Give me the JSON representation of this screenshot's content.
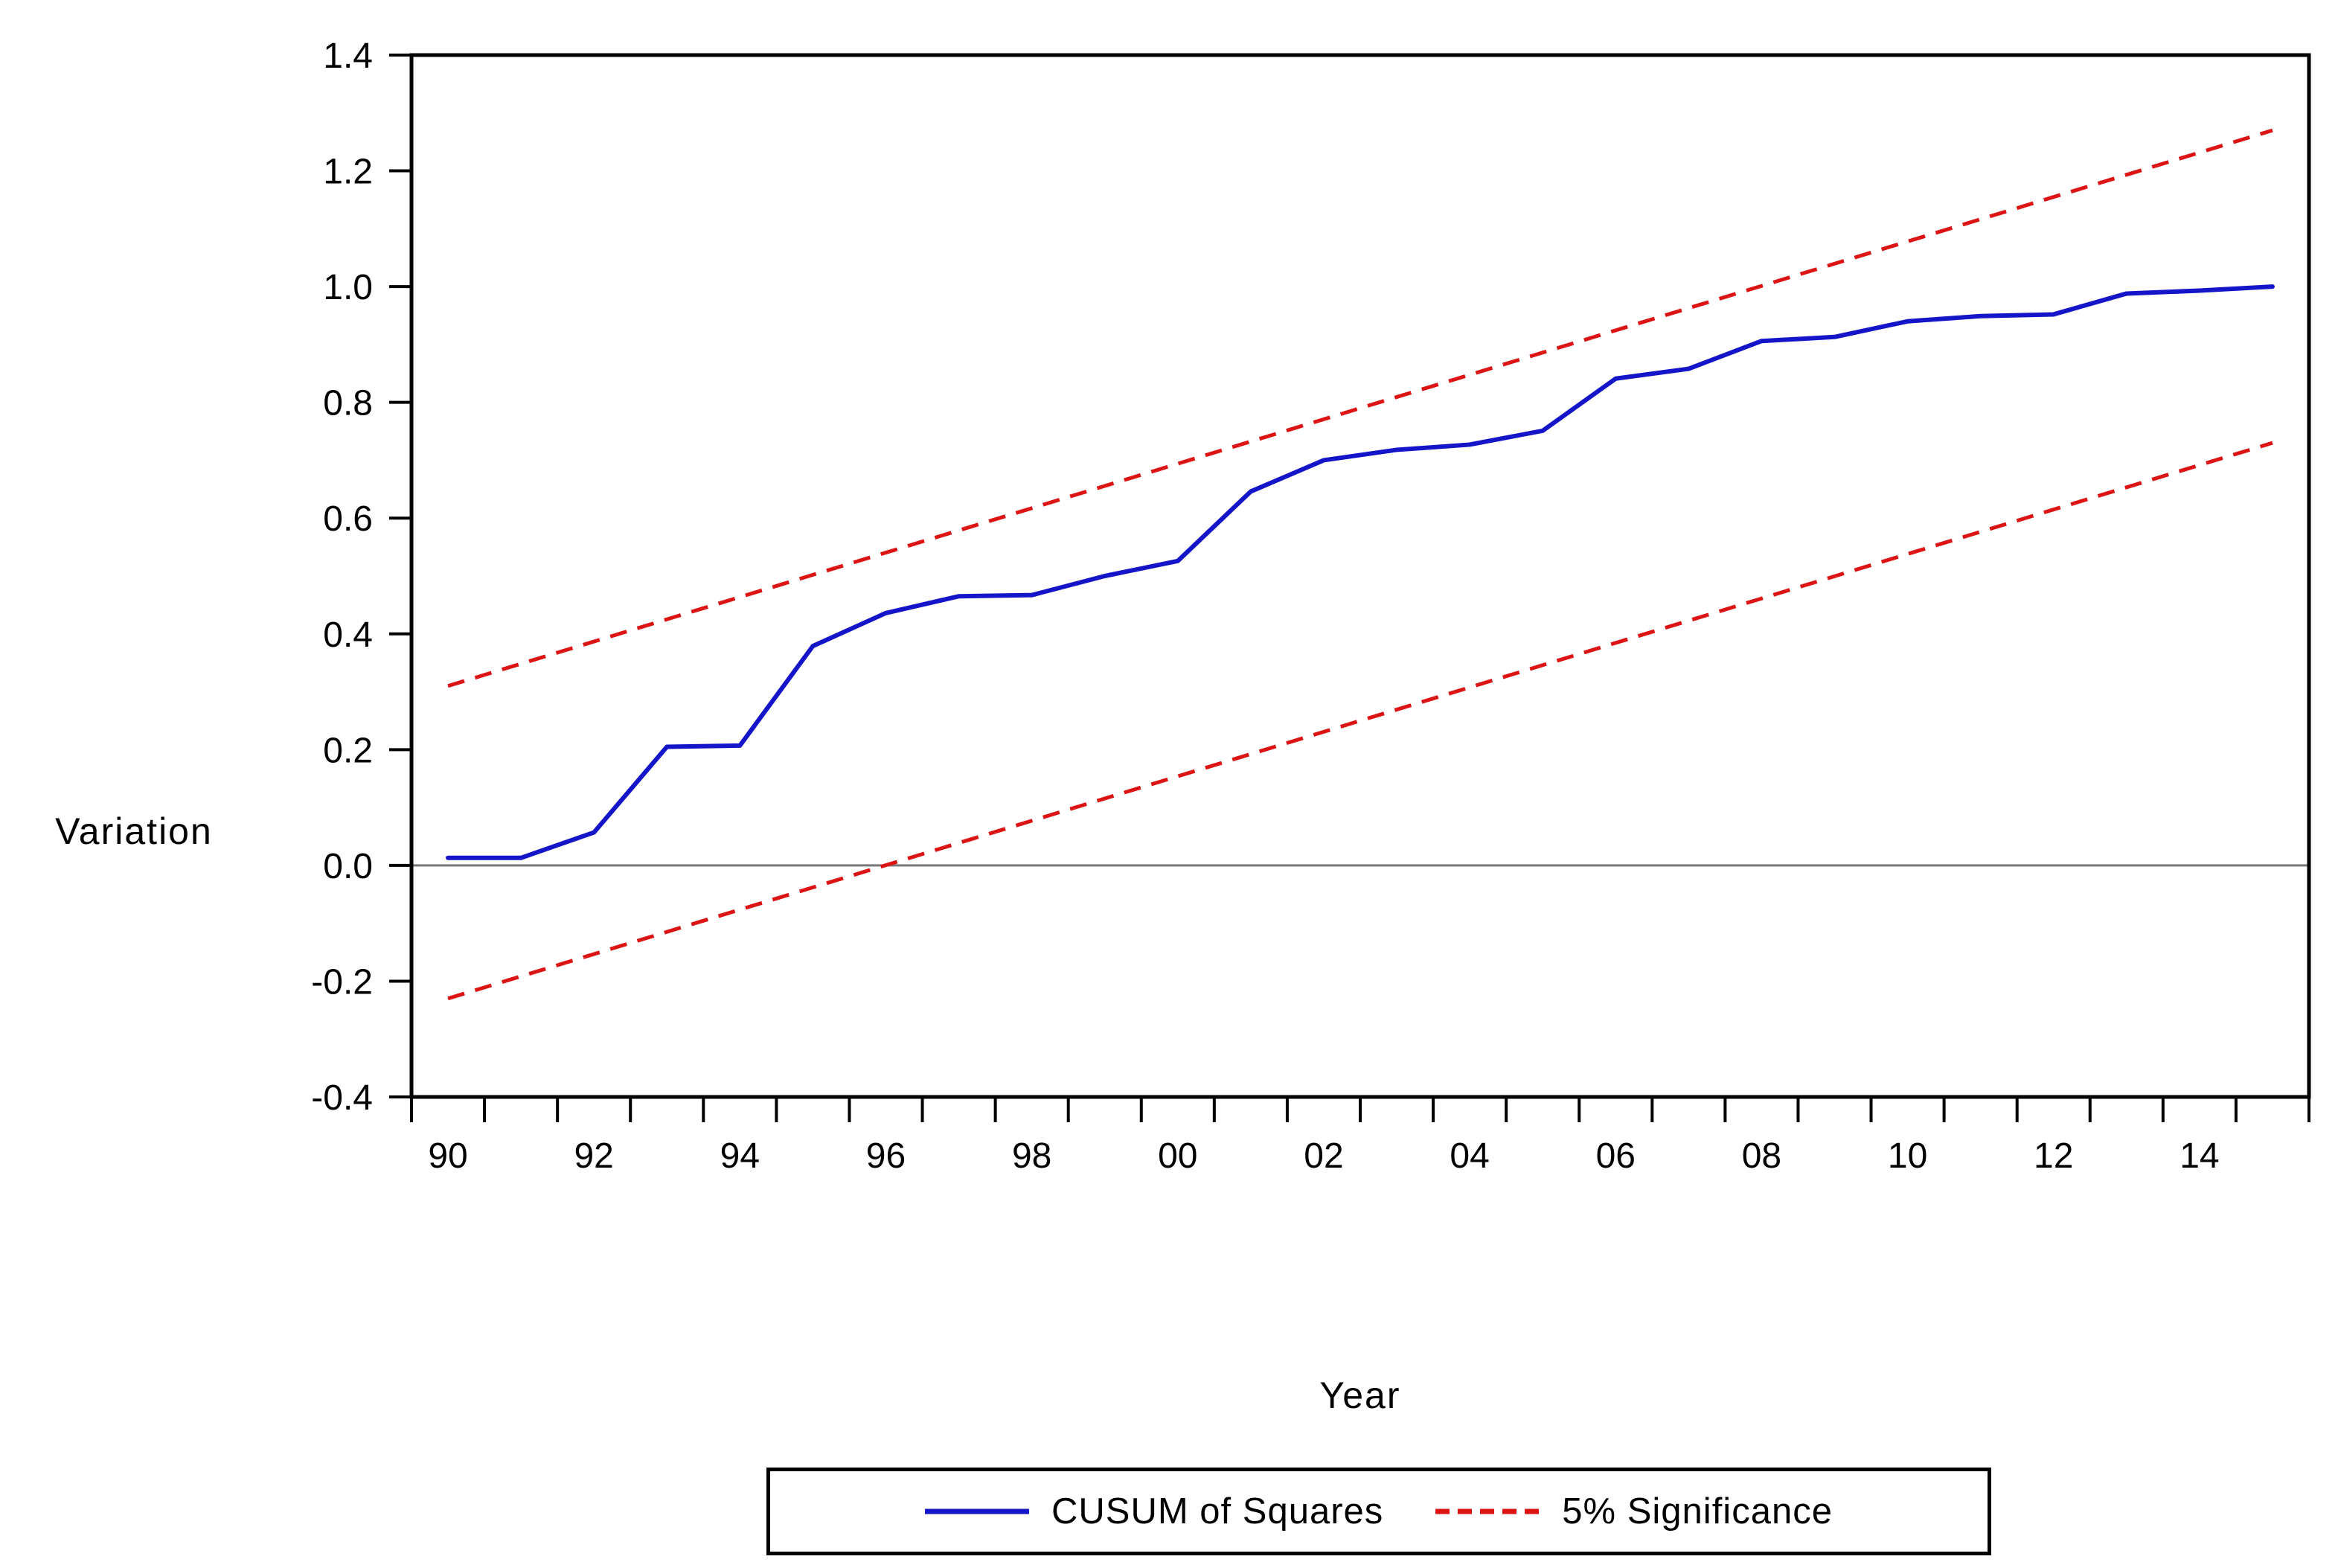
{
  "page": {
    "background": "#ffffff"
  },
  "chart_data": {
    "type": "line",
    "title": "",
    "ylabel": "Variation",
    "xlabel": "Year",
    "ylim": [
      -0.4,
      1.4
    ],
    "ytick_step": 0.2,
    "ytick_labels": [
      "-0.4",
      "-0.2",
      "0.0",
      "0.2",
      "0.4",
      "0.6",
      "0.8",
      "1.0",
      "1.2",
      "1.4"
    ],
    "xlim": [
      1989.5,
      2015.5
    ],
    "x_minor_tick_interval": 1,
    "xticks": {
      "years": [
        1990,
        1992,
        1994,
        1996,
        1998,
        2000,
        2002,
        2004,
        2006,
        2008,
        2010,
        2012,
        2014
      ],
      "labels": [
        "90",
        "92",
        "94",
        "96",
        "98",
        "00",
        "02",
        "04",
        "06",
        "08",
        "10",
        "12",
        "14"
      ]
    },
    "grid": false,
    "zero_line_value": 0.0,
    "series": [
      {
        "name": "CUSUM of Squares",
        "color": "#1414c8",
        "style": "solid",
        "x": [
          1990,
          1991,
          1992,
          1993,
          1994,
          1995,
          1996,
          1997,
          1998,
          1999,
          2000,
          2001,
          2002,
          2003,
          2004,
          2005,
          2006,
          2007,
          2008,
          2009,
          2010,
          2011,
          2012,
          2013,
          2014,
          2015
        ],
        "values": [
          0.013,
          0.013,
          0.057,
          0.205,
          0.207,
          0.379,
          0.436,
          0.465,
          0.467,
          0.5,
          0.526,
          0.646,
          0.7,
          0.718,
          0.727,
          0.751,
          0.841,
          0.858,
          0.906,
          0.913,
          0.94,
          0.949,
          0.952,
          0.988,
          0.993,
          1.0
        ]
      },
      {
        "name": "5% Significance",
        "color": "#dc1414",
        "style": "dashed",
        "lines": [
          {
            "x": [
              1990,
              2015
            ],
            "values": [
              0.31,
              1.27
            ]
          },
          {
            "x": [
              1990,
              2015
            ],
            "values": [
              -0.23,
              0.73
            ]
          }
        ]
      }
    ],
    "legend": {
      "position": "bottom-center",
      "border": true,
      "items": [
        {
          "label": "CUSUM of Squares",
          "swatch": "solid-line",
          "color": "#1414c8"
        },
        {
          "label": "5% Significance",
          "swatch": "dashed-line",
          "color": "#dc1414"
        }
      ]
    },
    "colors": {
      "frame": "#000000",
      "zero_line": "#787878",
      "tick": "#000000",
      "text": "#000000"
    }
  }
}
